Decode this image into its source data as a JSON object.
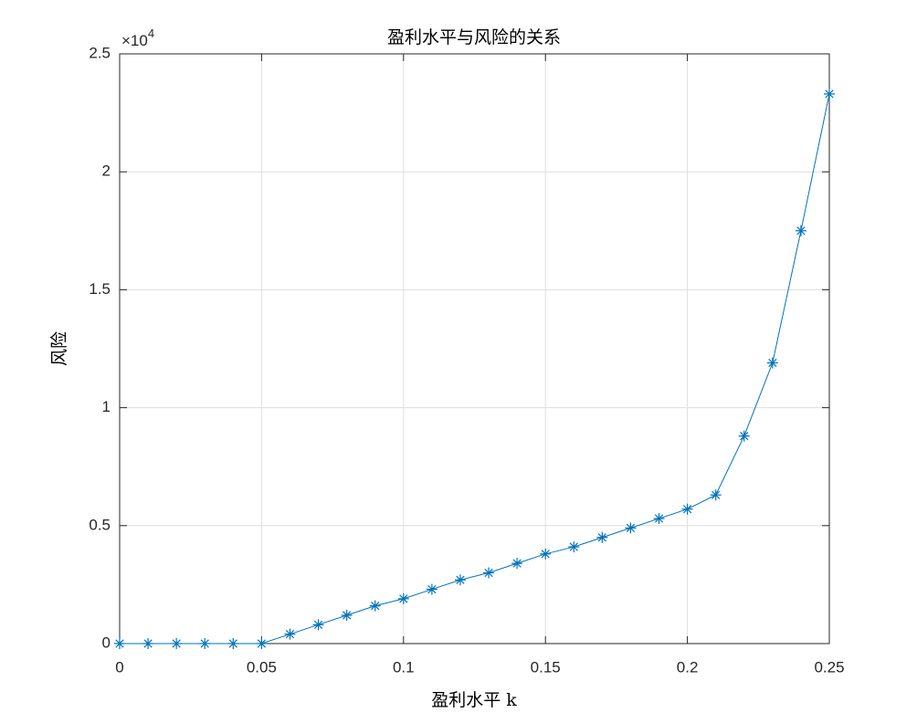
{
  "chart_data": {
    "type": "line",
    "title": "盈利水平与风险的关系",
    "x_label": "盈利水平 k",
    "y_label": "风险",
    "y_multiplier": {
      "base": "×10",
      "exponent": "4"
    },
    "x": [
      0,
      0.01,
      0.02,
      0.03,
      0.04,
      0.05,
      0.06,
      0.07,
      0.08,
      0.09,
      0.1,
      0.11,
      0.12,
      0.13,
      0.14,
      0.15,
      0.16,
      0.17,
      0.18,
      0.19,
      0.2,
      0.21,
      0.22,
      0.23,
      0.24,
      0.25
    ],
    "values": [
      0,
      0,
      0,
      0,
      0,
      0,
      0.04,
      0.08,
      0.12,
      0.16,
      0.19,
      0.23,
      0.27,
      0.3,
      0.34,
      0.38,
      0.41,
      0.45,
      0.49,
      0.53,
      0.57,
      0.63,
      0.88,
      1.19,
      1.75,
      2.33
    ],
    "color": "#0072bd",
    "marker": "asterisk",
    "xlim": [
      0,
      0.25
    ],
    "xticks": [
      0,
      0.05,
      0.1,
      0.15,
      0.2,
      0.25
    ],
    "ylim": [
      0,
      2.5
    ],
    "yticks": [
      0,
      0.5,
      1,
      1.5,
      2,
      2.5
    ],
    "grid": true
  }
}
